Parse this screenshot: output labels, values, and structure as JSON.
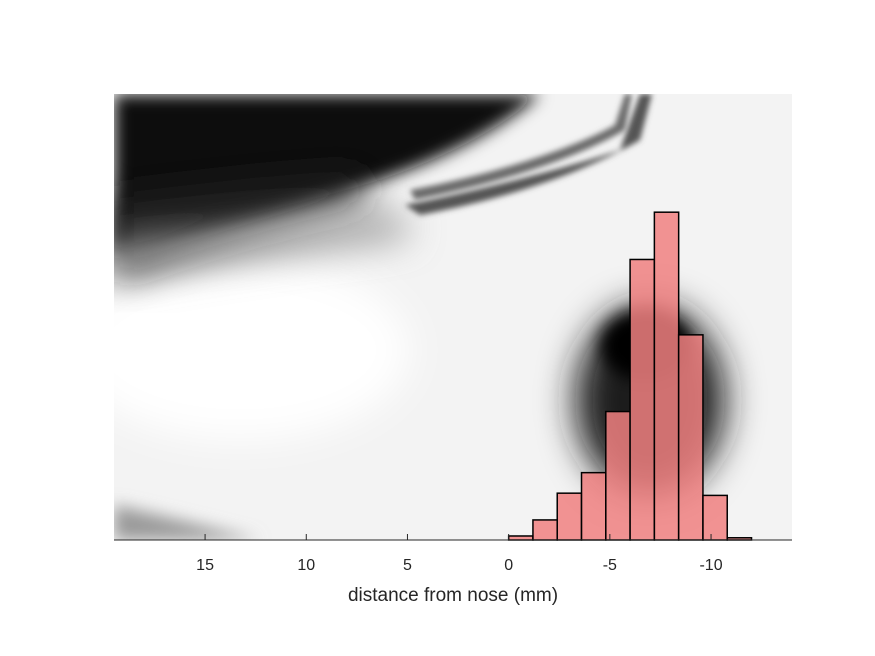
{
  "chart_data": {
    "type": "bar",
    "title": "",
    "xlabel": "distance from nose (mm)",
    "ylabel": "",
    "x_reversed": true,
    "xlim": [
      19.5,
      -14
    ],
    "ylim": [
      0,
      1
    ],
    "xticks": [
      15,
      10,
      5,
      0,
      -5,
      -10
    ],
    "xtick_labels": [
      "15",
      "10",
      "5",
      "0",
      "-5",
      "-10"
    ],
    "bin_edges": [
      0,
      -1.2,
      -2.4,
      -3.6,
      -4.8,
      -6.0,
      -7.2,
      -8.4,
      -9.6,
      -10.8,
      -12.0
    ],
    "values": [
      0.009,
      0.045,
      0.105,
      0.151,
      0.288,
      0.629,
      0.735,
      0.46,
      0.1,
      0.005
    ],
    "bar_color": "#f08080",
    "bar_edge_color": "#000000",
    "background_image": "grayscale face-profile photograph",
    "grid": false
  }
}
